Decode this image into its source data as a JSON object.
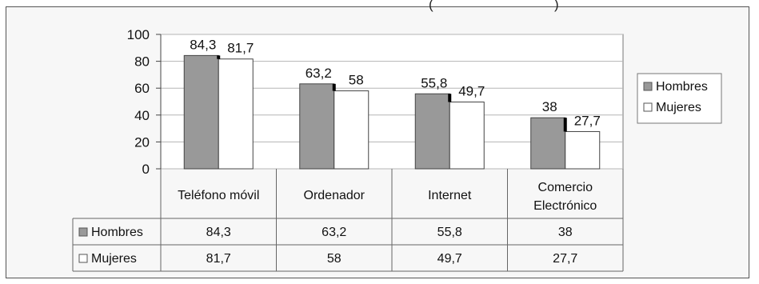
{
  "chart_data": {
    "type": "bar",
    "categories": [
      "Teléfono móvil",
      "Ordenador",
      "Internet",
      "Comercio Electrónico"
    ],
    "category_lines": [
      [
        "Teléfono móvil"
      ],
      [
        "Ordenador"
      ],
      [
        "Internet"
      ],
      [
        "Comercio",
        "Electrónico"
      ]
    ],
    "series": [
      {
        "name": "Hombres",
        "values": [
          84.3,
          63.2,
          55.8,
          38
        ],
        "labels": [
          "84,3",
          "63,2",
          "55,8",
          "38"
        ],
        "color": "#999999"
      },
      {
        "name": "Mujeres",
        "values": [
          81.7,
          58,
          49.7,
          27.7
        ],
        "labels": [
          "81,7",
          "58",
          "49,7",
          "27,7"
        ],
        "color": "#ffffff"
      }
    ],
    "yticks": [
      0,
      20,
      40,
      60,
      80,
      100
    ],
    "ylim": [
      0,
      100
    ],
    "grid": true,
    "legend_position": "right",
    "data_table": true
  }
}
